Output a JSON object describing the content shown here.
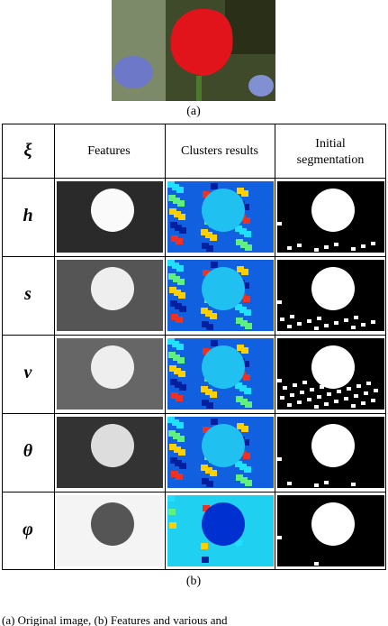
{
  "figure": {
    "image_label": "(a)",
    "table": {
      "header": [
        "ξ",
        "Features",
        "Clusters results",
        "Initial",
        "segmentation"
      ],
      "rows": [
        "h",
        "s",
        "v",
        "θ",
        "φ"
      ]
    },
    "table_label": "(b)",
    "caption": "(a)   Original image,   (b)   Features and various and"
  }
}
